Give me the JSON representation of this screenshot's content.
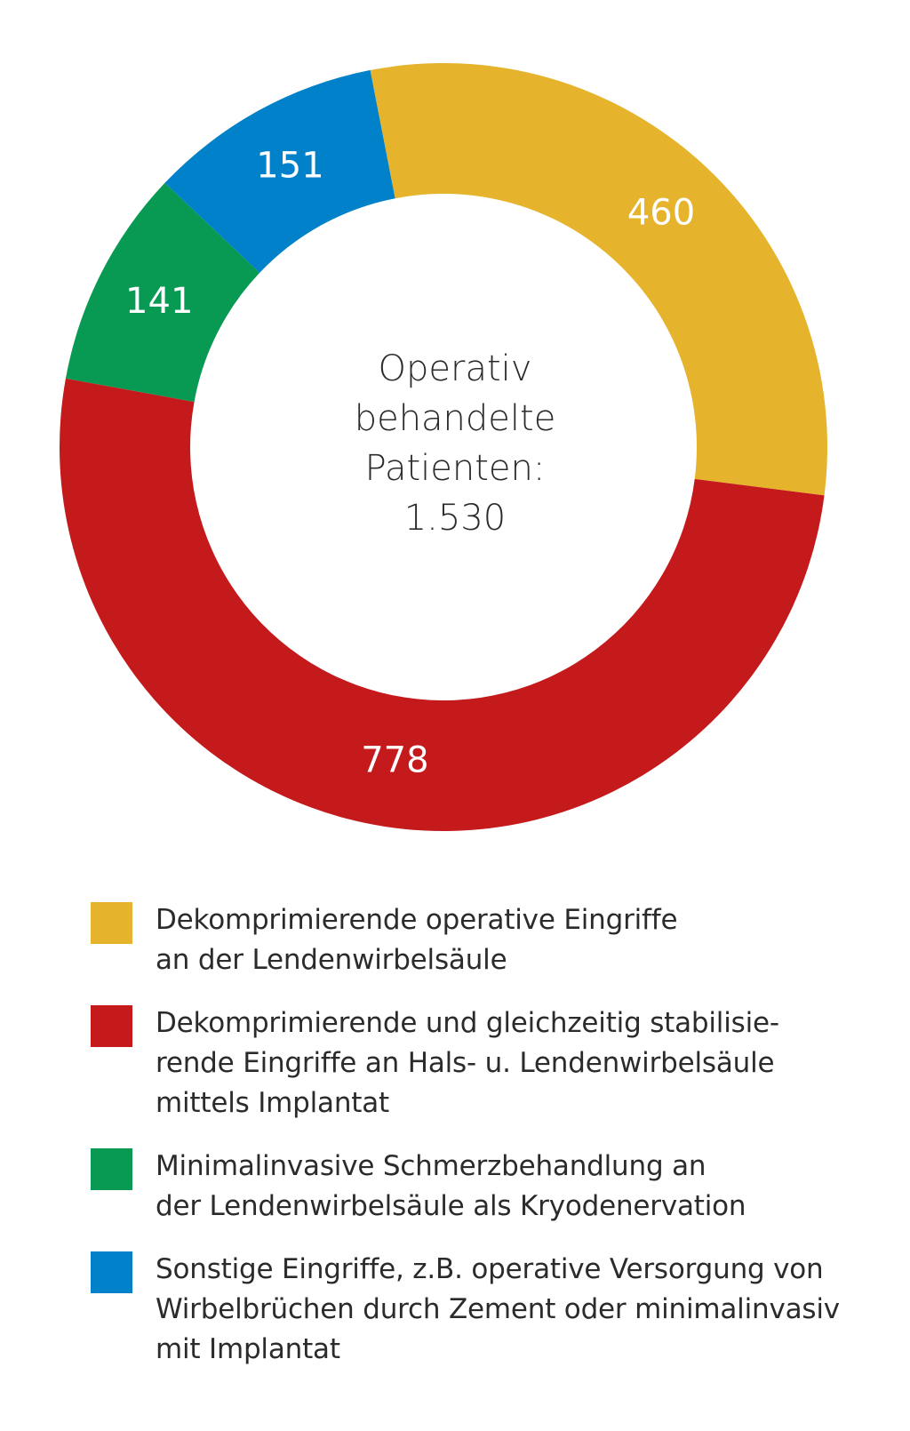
{
  "chart_data": {
    "type": "pie",
    "donut": true,
    "center_label": [
      "Operativ",
      "behandelte",
      "Patienten:",
      "1.530"
    ],
    "slices": [
      {
        "label": "Dekomprimierende operative Eingriffe\nan der Lendenwirbelsäule",
        "value": 460,
        "value_label": "460",
        "color": "#E6B42C"
      },
      {
        "label": "Dekomprimierende und gleichzeitig stabilisie-\nrende Eingriffe an Hals- u. Lendenwirbelsäule\nmittels Implantat",
        "value": 778,
        "value_label": "778",
        "color": "#C41A1C"
      },
      {
        "label": "Minimalinvasive Schmerzbehandlung an\nder Lendenwirbelsäule als Kryodenervation",
        "value": 141,
        "value_label": "141",
        "color": "#089A53"
      },
      {
        "label": "Sonstige Eingriffe, z.B. operative Versorgung von\nWirbelbrüchen durch Zement oder minimalinvasiv\nmit Implantat",
        "value": 151,
        "value_label": "151",
        "color": "#0081C9"
      }
    ],
    "legend_position": "bottom"
  }
}
